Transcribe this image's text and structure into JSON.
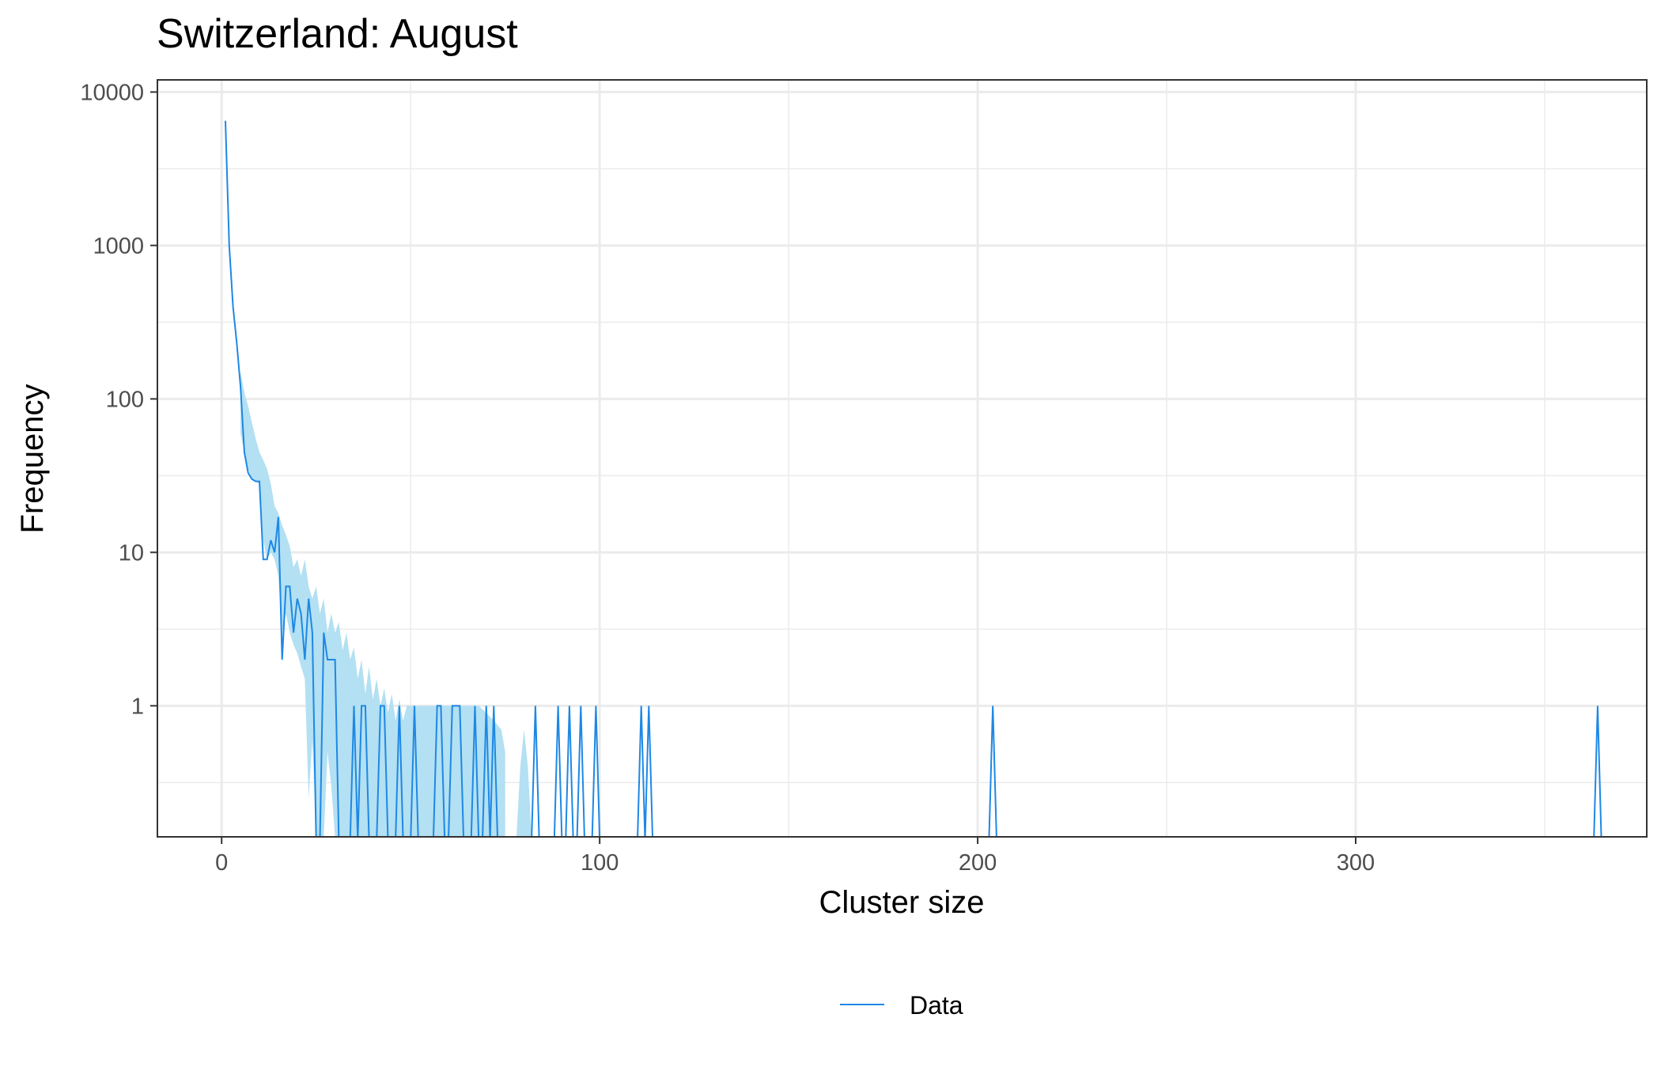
{
  "chart_data": {
    "type": "line",
    "title": "Switzerland: August",
    "xlabel": "Cluster size",
    "ylabel": "Frequency",
    "y_scale": "log10",
    "xlim": [
      -17,
      377
    ],
    "ylim": [
      0.14,
      12000
    ],
    "x_ticks": [
      0,
      100,
      200,
      300
    ],
    "x_tick_labels": [
      "0",
      "100",
      "200",
      "300"
    ],
    "y_ticks": [
      1,
      10,
      100,
      1000,
      10000
    ],
    "y_tick_labels": [
      "1",
      "10",
      "100",
      "1000",
      "10000"
    ],
    "grid": true,
    "legend_position": "bottom",
    "colors": {
      "line": "#1e88e5",
      "band": "#b3e0f2",
      "grid": "#ebebeb",
      "frame": "#333333"
    },
    "series": [
      {
        "name": "Data",
        "points": [
          [
            1,
            6500
          ],
          [
            2,
            1000
          ],
          [
            3,
            400
          ],
          [
            4,
            230
          ],
          [
            5,
            120
          ],
          [
            6,
            45
          ],
          [
            7,
            33
          ],
          [
            8,
            30
          ],
          [
            9,
            29
          ],
          [
            10,
            29
          ],
          [
            11,
            9
          ],
          [
            12,
            9
          ],
          [
            13,
            12
          ],
          [
            14,
            10
          ],
          [
            15,
            17
          ],
          [
            16,
            2
          ],
          [
            17,
            6
          ],
          [
            18,
            6
          ],
          [
            19,
            3
          ],
          [
            20,
            5
          ],
          [
            21,
            4
          ],
          [
            22,
            2
          ],
          [
            23,
            5
          ],
          [
            24,
            3
          ],
          [
            25,
            0
          ],
          [
            26,
            0
          ],
          [
            27,
            3
          ],
          [
            28,
            2
          ],
          [
            29,
            2
          ],
          [
            30,
            2
          ],
          [
            31,
            0
          ],
          [
            32,
            0
          ],
          [
            33,
            0
          ],
          [
            34,
            0
          ],
          [
            35,
            1
          ],
          [
            36,
            0
          ],
          [
            37,
            1
          ],
          [
            38,
            1
          ],
          [
            39,
            0
          ],
          [
            40,
            0
          ],
          [
            41,
            0
          ],
          [
            42,
            1
          ],
          [
            43,
            1
          ],
          [
            44,
            0
          ],
          [
            45,
            0
          ],
          [
            46,
            0
          ],
          [
            47,
            1
          ],
          [
            48,
            0
          ],
          [
            49,
            0
          ],
          [
            50,
            0
          ],
          [
            51,
            1
          ],
          [
            52,
            0
          ],
          [
            56,
            0
          ],
          [
            57,
            1
          ],
          [
            58,
            1
          ],
          [
            59,
            0
          ],
          [
            60,
            0
          ],
          [
            61,
            1
          ],
          [
            62,
            1
          ],
          [
            63,
            1
          ],
          [
            64,
            0
          ],
          [
            66,
            0
          ],
          [
            67,
            1
          ],
          [
            68,
            0
          ],
          [
            69,
            0
          ],
          [
            70,
            1
          ],
          [
            71,
            0
          ],
          [
            72,
            1
          ],
          [
            73,
            0
          ],
          [
            82,
            0
          ],
          [
            83,
            1
          ],
          [
            84,
            0
          ],
          [
            88,
            0
          ],
          [
            89,
            1
          ],
          [
            90,
            0
          ],
          [
            91,
            0
          ],
          [
            92,
            1
          ],
          [
            93,
            0
          ],
          [
            94,
            0
          ],
          [
            95,
            1
          ],
          [
            96,
            0
          ],
          [
            98,
            0
          ],
          [
            99,
            1
          ],
          [
            100,
            0
          ],
          [
            110,
            0
          ],
          [
            111,
            1
          ],
          [
            112,
            0
          ],
          [
            113,
            1
          ],
          [
            114,
            0
          ],
          [
            203,
            0
          ],
          [
            204,
            1
          ],
          [
            205,
            0
          ],
          [
            363,
            0
          ],
          [
            364,
            1
          ],
          [
            365,
            0
          ]
        ]
      }
    ],
    "band": {
      "upper": [
        [
          5,
          150
        ],
        [
          6,
          110
        ],
        [
          7,
          90
        ],
        [
          8,
          70
        ],
        [
          9,
          55
        ],
        [
          10,
          45
        ],
        [
          11,
          40
        ],
        [
          12,
          35
        ],
        [
          13,
          28
        ],
        [
          14,
          20
        ],
        [
          15,
          18
        ],
        [
          16,
          15
        ],
        [
          17,
          13
        ],
        [
          18,
          11
        ],
        [
          19,
          8
        ],
        [
          20,
          9
        ],
        [
          21,
          7
        ],
        [
          22,
          9
        ],
        [
          23,
          6
        ],
        [
          24,
          5
        ],
        [
          25,
          6
        ],
        [
          26,
          4
        ],
        [
          27,
          5
        ],
        [
          28,
          3
        ],
        [
          29,
          4
        ],
        [
          30,
          3
        ],
        [
          31,
          3.5
        ],
        [
          32,
          2.3
        ],
        [
          33,
          3
        ],
        [
          34,
          2
        ],
        [
          35,
          2.4
        ],
        [
          36,
          1.5
        ],
        [
          37,
          2
        ],
        [
          38,
          1.2
        ],
        [
          39,
          1.8
        ],
        [
          40,
          1.1
        ],
        [
          41,
          1.5
        ],
        [
          42,
          1
        ],
        [
          43,
          1.3
        ],
        [
          44,
          0.9
        ],
        [
          45,
          1.2
        ],
        [
          46,
          0.8
        ],
        [
          47,
          1.1
        ],
        [
          48,
          0.8
        ],
        [
          49,
          1
        ],
        [
          50,
          1
        ],
        [
          52,
          1
        ],
        [
          54,
          1
        ],
        [
          56,
          1
        ],
        [
          58,
          1
        ],
        [
          60,
          1
        ],
        [
          62,
          1
        ],
        [
          64,
          1
        ],
        [
          66,
          1
        ],
        [
          68,
          1
        ],
        [
          70,
          0.9
        ],
        [
          72,
          0.8
        ],
        [
          74,
          0.7
        ],
        [
          75,
          0.5
        ]
      ],
      "lower": [
        [
          5,
          60
        ],
        [
          6,
          45
        ],
        [
          7,
          35
        ],
        [
          8,
          30
        ],
        [
          9,
          29
        ],
        [
          10,
          28
        ],
        [
          11,
          12
        ],
        [
          12,
          9
        ],
        [
          13,
          10
        ],
        [
          14,
          9
        ],
        [
          15,
          7
        ],
        [
          16,
          3
        ],
        [
          17,
          4
        ],
        [
          18,
          3
        ],
        [
          19,
          2.5
        ],
        [
          20,
          2.2
        ],
        [
          21,
          1.8
        ],
        [
          22,
          1.5
        ],
        [
          23,
          0.25
        ],
        [
          24,
          0.6
        ],
        [
          25,
          0.14
        ],
        [
          26,
          0.14
        ],
        [
          27,
          0.14
        ],
        [
          28,
          0.5
        ],
        [
          29,
          0.3
        ],
        [
          30,
          0.14
        ],
        [
          75,
          0.14
        ]
      ],
      "extra_upper": [
        [
          78,
          0.14
        ],
        [
          79,
          0.4
        ],
        [
          80,
          0.7
        ],
        [
          81,
          0.4
        ],
        [
          82,
          0.14
        ]
      ]
    }
  },
  "legend": {
    "label": "Data"
  }
}
